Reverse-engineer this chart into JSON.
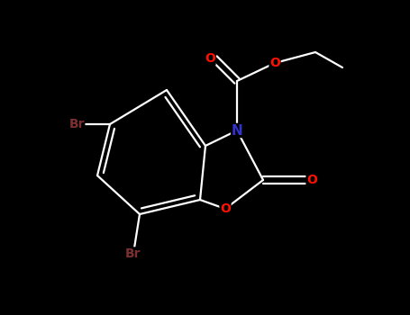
{
  "background_color": "#000000",
  "bond_color": "#ffffff",
  "N_color": "#3333cc",
  "O_color": "#ff1100",
  "Br_color": "#7B3030",
  "figsize": [
    4.55,
    3.5
  ],
  "dpi": 100,
  "xlim": [
    0,
    9.1
  ],
  "ylim": [
    0,
    7.0
  ]
}
